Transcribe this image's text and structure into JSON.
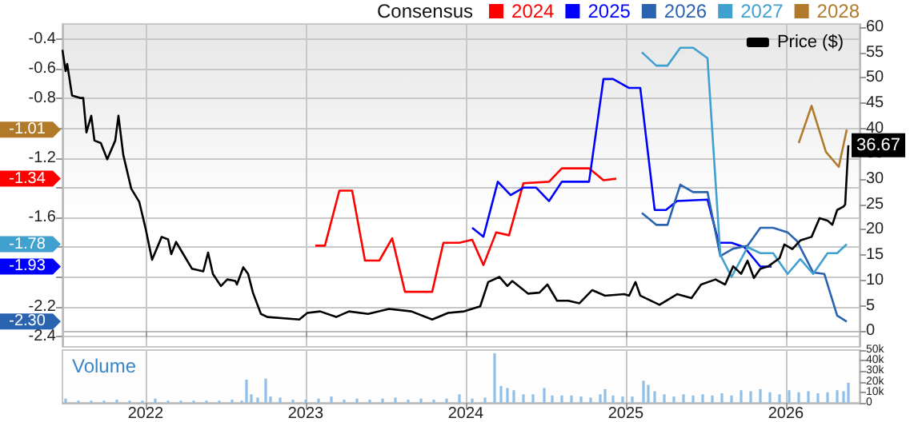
{
  "chart_data": [
    {
      "type": "line",
      "legend_title": "Consensus",
      "legend": "top right",
      "grid": true,
      "tick_labels": "y",
      "xlim": [
        2021.48,
        2026.46
      ],
      "xticks": [
        2022,
        2023,
        2024,
        2025,
        2026
      ],
      "ylim": [
        -2.47,
        -0.3
      ],
      "yticks": [
        -2.4,
        -2.2,
        {
          "value": -2,
          "label": null
        },
        {
          "value": -1.8,
          "label": null
        },
        -1.6,
        {
          "value": -1.4,
          "label": null
        },
        -1.2,
        {
          "value": -1,
          "label": null
        },
        -0.8,
        -0.6,
        -0.4
      ],
      "y2lim": [
        -3.1,
        60.6
      ],
      "y2ticks": [
        0,
        5,
        10,
        15,
        20,
        25,
        30,
        35,
        40,
        45,
        50,
        55,
        60
      ],
      "series": [
        {
          "name": "2024",
          "color": "#ff0000",
          "x": [
            2023.06,
            2023.12,
            2023.21,
            2023.29,
            2023.37,
            2023.46,
            2023.54,
            2023.62,
            2023.79,
            2023.86,
            2023.96,
            2024.04,
            2024.11,
            2024.19,
            2024.27,
            2024.36,
            2024.52,
            2024.6,
            2024.77,
            2024.86,
            2024.94
          ],
          "values": [
            -1.79,
            -1.79,
            -1.42,
            -1.42,
            -1.89,
            -1.89,
            -1.74,
            -2.1,
            -2.1,
            -1.77,
            -1.77,
            -1.75,
            -1.92,
            -1.7,
            -1.72,
            -1.37,
            -1.36,
            -1.27,
            -1.27,
            -1.35,
            -1.34
          ]
        },
        {
          "name": "2025",
          "color": "#0000ff",
          "x": [
            2024.04,
            2024.11,
            2024.2,
            2024.28,
            2024.36,
            2024.44,
            2024.52,
            2024.6,
            2024.77,
            2024.86,
            2024.92,
            2025.02,
            2025.09,
            2025.18,
            2025.25,
            2025.32,
            2025.51,
            2025.58,
            2025.66,
            2025.74,
            2025.84,
            2025.91
          ],
          "values": [
            -1.67,
            -1.73,
            -1.36,
            -1.45,
            -1.4,
            -1.4,
            -1.49,
            -1.36,
            -1.36,
            -0.67,
            -0.67,
            -0.73,
            -0.73,
            -1.55,
            -1.55,
            -1.49,
            -1.48,
            -1.77,
            -1.77,
            -1.8,
            -1.93,
            -1.93
          ]
        },
        {
          "name": "2026",
          "color": "#2a63b0",
          "x": [
            2025.1,
            2025.19,
            2025.26,
            2025.34,
            2025.42,
            2025.51,
            2025.59,
            2025.67,
            2025.76,
            2025.84,
            2025.92,
            2026.01,
            2026.07,
            2026.17,
            2026.24,
            2026.32,
            2026.38
          ],
          "values": [
            -1.57,
            -1.65,
            -1.65,
            -1.38,
            -1.43,
            -1.43,
            -1.86,
            -1.81,
            -1.79,
            -1.67,
            -1.67,
            -1.7,
            -1.76,
            -1.97,
            -1.98,
            -2.26,
            -2.3
          ]
        },
        {
          "name": "2027",
          "color": "#40a0d0",
          "x": [
            2025.1,
            2025.19,
            2025.26,
            2025.34,
            2025.42,
            2025.51,
            2025.59,
            2025.66,
            2025.76,
            2025.84,
            2025.92,
            2026.01,
            2026.09,
            2026.17,
            2026.26,
            2026.32,
            2026.38
          ],
          "values": [
            -0.49,
            -0.58,
            -0.58,
            -0.46,
            -0.46,
            -0.53,
            -1.85,
            -2,
            -1.8,
            -1.84,
            -1.84,
            -1.98,
            -1.88,
            -1.98,
            -1.84,
            -1.84,
            -1.78
          ]
        },
        {
          "name": "2028",
          "color": "#b07a2a",
          "x": [
            2026.08,
            2026.16,
            2026.25,
            2026.33,
            2026.38
          ],
          "values": [
            -1.1,
            -0.85,
            -1.16,
            -1.26,
            -1.01
          ]
        },
        {
          "name": "Price ($)",
          "color": "#000000",
          "axis": "y2",
          "x": [
            2021.48,
            2021.5,
            2021.51,
            2021.54,
            2021.59,
            2021.61,
            2021.63,
            2021.66,
            2021.68,
            2021.72,
            2021.76,
            2021.81,
            2021.83,
            2021.86,
            2021.91,
            2021.96,
            2022,
            2022.04,
            2022.1,
            2022.14,
            2022.16,
            2022.19,
            2022.25,
            2022.29,
            2022.36,
            2022.39,
            2022.42,
            2022.47,
            2022.51,
            2022.56,
            2022.57,
            2022.61,
            2022.64,
            2022.67,
            2022.72,
            2022.76,
            2022.96,
            2023.01,
            2023.09,
            2023.19,
            2023.27,
            2023.39,
            2023.52,
            2023.66,
            2023.79,
            2023.89,
            2023.99,
            2024.09,
            2024.14,
            2024.21,
            2024.26,
            2024.29,
            2024.39,
            2024.46,
            2024.51,
            2024.57,
            2024.64,
            2024.71,
            2024.79,
            2024.87,
            2024.99,
            2025.02,
            2025.06,
            2025.09,
            2025.21,
            2025.32,
            2025.41,
            2025.47,
            2025.56,
            2025.62,
            2025.67,
            2025.72,
            2025.76,
            2025.8,
            2025.84,
            2025.89,
            2025.96,
            2025.99,
            2026.04,
            2026.09,
            2026.16,
            2026.21,
            2026.26,
            2026.29,
            2026.32,
            2026.36,
            2026.37,
            2026.39
          ],
          "values": [
            55.5,
            51.3,
            52.7,
            46.5,
            46,
            46,
            39.2,
            42.5,
            37.6,
            37.1,
            33.9,
            37.6,
            42.5,
            34.8,
            28.1,
            25.5,
            20.2,
            14.1,
            18.6,
            18.1,
            15.2,
            17.6,
            14.4,
            12.3,
            11.8,
            15.5,
            11.3,
            8.9,
            10.2,
            9.9,
            9.2,
            12.6,
            11.3,
            7.6,
            3.4,
            2.8,
            2.3,
            3.6,
            3.9,
            2.8,
            3.9,
            3.4,
            4.4,
            3.9,
            2.3,
            3.6,
            3.9,
            4.9,
            9.7,
            10.7,
            8.9,
            9.9,
            7.4,
            7.6,
            9.2,
            6,
            6,
            5.5,
            8.1,
            7,
            7.3,
            7,
            9.7,
            7,
            5.2,
            7.3,
            6.5,
            9.2,
            10.2,
            9.2,
            12.8,
            11.3,
            13.9,
            10.5,
            12.3,
            12.8,
            14.4,
            17.1,
            16.2,
            17.9,
            18.6,
            22.3,
            21.8,
            21,
            23.9,
            24.6,
            25,
            36.67
          ],
          "value_labels": [
            null,
            null,
            null,
            null,
            null,
            null,
            null,
            null,
            null,
            null,
            null,
            null,
            null,
            null,
            null,
            null,
            null,
            null,
            null,
            null,
            null,
            null,
            null,
            null,
            null,
            null,
            null,
            null,
            null,
            null,
            null,
            null,
            null,
            null,
            null,
            null,
            null,
            null,
            null,
            null,
            null,
            null,
            null,
            null,
            null,
            null,
            null,
            null,
            null,
            null,
            null,
            null,
            null,
            null,
            null,
            null,
            null,
            null,
            null,
            null,
            null,
            null,
            null,
            null,
            null,
            null,
            null,
            null,
            null,
            null,
            null,
            null,
            null,
            null,
            null,
            null,
            null,
            null,
            null,
            null,
            null,
            null,
            null,
            null,
            null,
            null,
            null,
            "36.67"
          ]
        }
      ],
      "annotations": [
        "-1.34",
        "-1.93",
        "-2.30",
        "-1.78",
        "-1.01"
      ]
    },
    {
      "type": "bar",
      "title": "Volume",
      "color": "#90c0e8",
      "grid": "x",
      "xlim": [
        2021.48,
        2026.46
      ],
      "xticks": [
        2022,
        2023,
        2024,
        2025,
        2026
      ],
      "ylim": [
        0,
        50000
      ],
      "yticks": [
        0,
        {
          "value": 10000,
          "label": "10k"
        },
        {
          "value": 20000,
          "label": "20k"
        },
        {
          "value": 30000,
          "label": "30k"
        },
        {
          "value": 40000,
          "label": "40k"
        },
        {
          "value": 50000,
          "label": "50k"
        }
      ],
      "x": [
        2021.5,
        2021.58,
        2021.66,
        2021.74,
        2021.82,
        2021.9,
        2021.98,
        2022.06,
        2022.14,
        2022.22,
        2022.3,
        2022.38,
        2022.46,
        2022.54,
        2022.6,
        2022.63,
        2022.66,
        2022.7,
        2022.75,
        2022.78,
        2022.84,
        2022.92,
        2023,
        2023.08,
        2023.16,
        2023.24,
        2023.32,
        2023.4,
        2023.48,
        2023.56,
        2023.64,
        2023.72,
        2023.8,
        2023.88,
        2023.96,
        2024.04,
        2024.12,
        2024.18,
        2024.22,
        2024.26,
        2024.3,
        2024.36,
        2024.42,
        2024.49,
        2024.54,
        2024.6,
        2024.66,
        2024.72,
        2024.78,
        2024.84,
        2024.87,
        2024.92,
        2024.98,
        2025.04,
        2025.11,
        2025.14,
        2025.18,
        2025.24,
        2025.3,
        2025.36,
        2025.42,
        2025.48,
        2025.54,
        2025.6,
        2025.66,
        2025.72,
        2025.78,
        2025.84,
        2025.9,
        2025.96,
        2026.02,
        2026.08,
        2026.14,
        2026.2,
        2026.26,
        2026.32,
        2026.36,
        2026.39
      ],
      "values": [
        4000,
        2000,
        2000,
        2000,
        3000,
        2000,
        2000,
        4000,
        2000,
        2000,
        2000,
        2000,
        2000,
        3000,
        2000,
        22000,
        8000,
        5000,
        23000,
        6000,
        5000,
        3000,
        3000,
        4000,
        6000,
        3000,
        4000,
        3000,
        4000,
        5000,
        3000,
        4000,
        3000,
        4000,
        8000,
        4000,
        5000,
        47000,
        16000,
        14000,
        12000,
        8000,
        8000,
        14000,
        7000,
        7000,
        7000,
        6000,
        5000,
        8000,
        13000,
        7000,
        6000,
        6000,
        21000,
        17000,
        11000,
        8000,
        6000,
        8000,
        7000,
        8000,
        7000,
        9000,
        7000,
        12000,
        11000,
        13000,
        10000,
        8000,
        12000,
        10000,
        11000,
        9000,
        10000,
        12000,
        11000,
        19000
      ]
    }
  ]
}
